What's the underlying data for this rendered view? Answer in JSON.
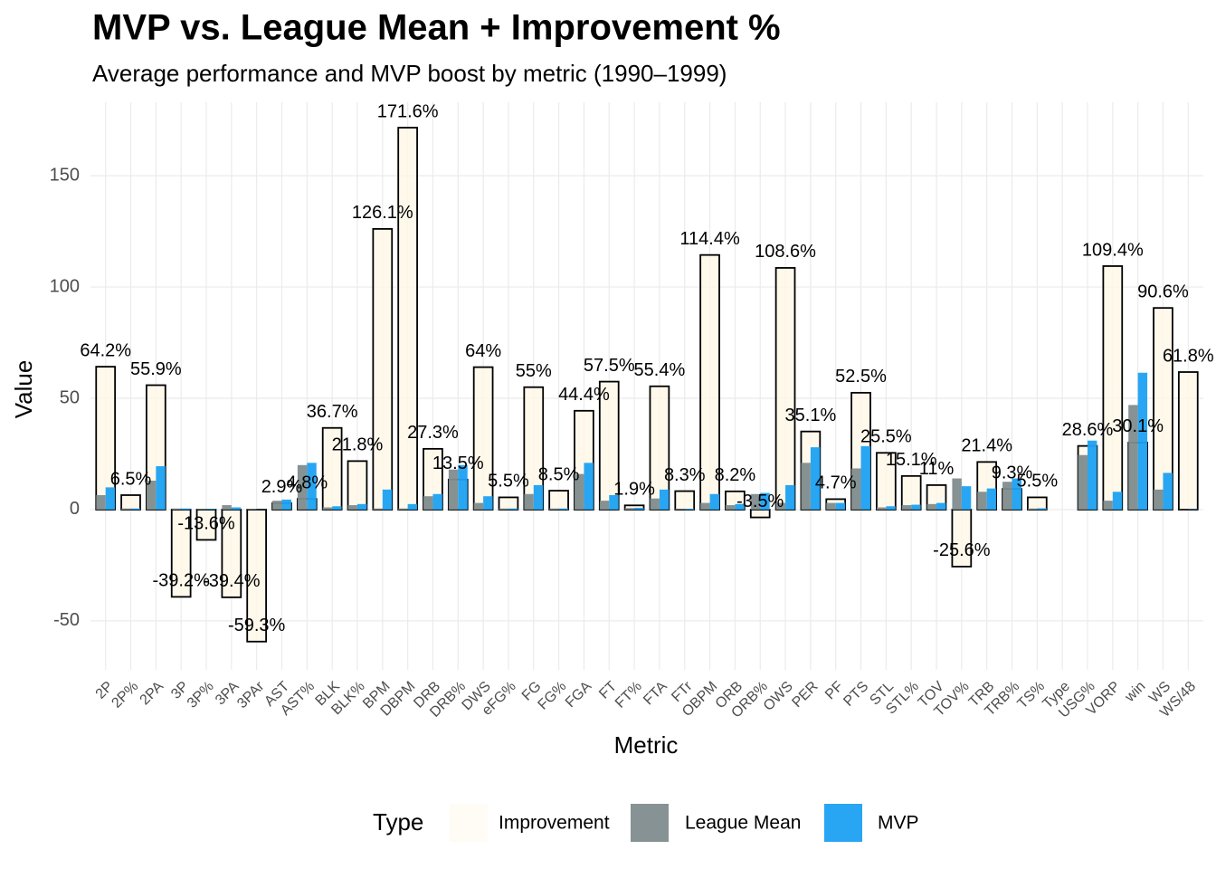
{
  "chart_data": {
    "type": "bar",
    "title": "MVP vs. League Mean + Improvement %",
    "subtitle": "Average performance and MVP boost by metric (1990–1999)",
    "x_label": "Metric",
    "y_label": "Value",
    "legend_title": "Type",
    "categories": [
      "2P",
      "2P%",
      "2PA",
      "3P",
      "3P%",
      "3PA",
      "3PAr",
      "AST",
      "AST%",
      "BLK",
      "BLK%",
      "BPM",
      "DBPM",
      "DRB",
      "DRB%",
      "DWS",
      "eFG%",
      "FG",
      "FG%",
      "FGA",
      "FT",
      "FT%",
      "FTA",
      "FTr",
      "OBPM",
      "ORB",
      "ORB%",
      "OWS",
      "PER",
      "PF",
      "PTS",
      "STL",
      "STL%",
      "TOV",
      "TOV%",
      "TRB",
      "TRB%",
      "TS%",
      "Type",
      "USG%",
      "VORP",
      "win",
      "WS",
      "WS/48"
    ],
    "series": [
      {
        "name": "Improvement",
        "color": "#fff8e7",
        "outline": "#000000",
        "values": [
          64.2,
          6.5,
          55.9,
          -39.2,
          -13.6,
          -39.4,
          -59.3,
          2.9,
          4.8,
          36.7,
          21.8,
          126.1,
          171.6,
          27.3,
          13.5,
          64,
          5.5,
          55,
          8.5,
          44.4,
          57.5,
          1.9,
          55.4,
          8.3,
          114.4,
          8.2,
          -3.5,
          108.6,
          35.1,
          4.7,
          52.5,
          25.5,
          15.1,
          11,
          -25.6,
          21.4,
          9.3,
          5.5,
          null,
          28.6,
          109.4,
          30.1,
          90.6,
          61.8
        ],
        "value_labels": [
          "64.2%",
          "6.5%",
          "55.9%",
          "-39.2%",
          "-13.6%",
          "-39.4%",
          "-59.3%",
          "2.9%",
          "4.8%",
          "36.7%",
          "21.8%",
          "126.1%",
          "171.6%",
          "27.3%",
          "13.5%",
          "64%",
          "5.5%",
          "55%",
          "8.5%",
          "44.4%",
          "57.5%",
          "1.9%",
          "55.4%",
          "8.3%",
          "114.4%",
          "8.2%",
          "-3.5%",
          "108.6%",
          "35.1%",
          "4.7%",
          "52.5%",
          "25.5%",
          "15.1%",
          "11%",
          "-25.6%",
          "21.4%",
          "9.3%",
          "5.5%",
          null,
          "28.6%",
          "109.4%",
          "30.1%",
          "90.6%",
          "61.8%"
        ]
      },
      {
        "name": "League Mean",
        "color": "#7f8c8d",
        "values": [
          6.5,
          0.5,
          13,
          0.5,
          0.3,
          2,
          0.3,
          4,
          20,
          1,
          2,
          0.5,
          0.5,
          6,
          18,
          3,
          0.5,
          7,
          0.5,
          16,
          4,
          0.7,
          5,
          0.3,
          3,
          2,
          7,
          3,
          21,
          3,
          18.5,
          1,
          2,
          2.5,
          14,
          8,
          12.5,
          0.5,
          null,
          24.5,
          4,
          47,
          9,
          0.1
        ]
      },
      {
        "name": "MVP",
        "color": "#1da1f2",
        "values": [
          10,
          0.5,
          19.5,
          0.5,
          0.3,
          1,
          0.1,
          4.5,
          21,
          1.5,
          2.5,
          9,
          2.5,
          7,
          20,
          6,
          0.5,
          11,
          0.5,
          21,
          6.5,
          0.8,
          9,
          0.4,
          7,
          2.5,
          7.5,
          11,
          28,
          3,
          28.5,
          1.5,
          2.2,
          3,
          10.5,
          9.5,
          14,
          0.6,
          null,
          31,
          8,
          61.5,
          16.5,
          0.2
        ]
      }
    ],
    "ylim": [
      -72,
      183
    ],
    "yticks": [
      -50,
      0,
      50,
      100,
      150
    ],
    "grid": true
  }
}
